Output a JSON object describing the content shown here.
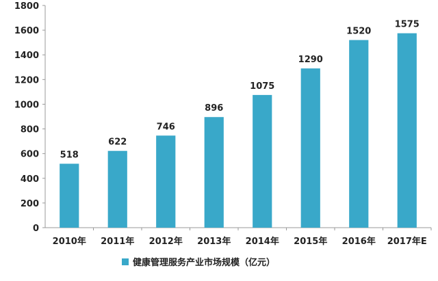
{
  "chart_data": {
    "type": "bar",
    "categories": [
      "2010年",
      "2011年",
      "2012年",
      "2013年",
      "2014年",
      "2015年",
      "2016年",
      "2017年E"
    ],
    "series": [
      {
        "name": "健康管理服务产业市场规模（亿元）",
        "values": [
          518,
          622,
          746,
          896,
          1075,
          1290,
          1520,
          1575
        ]
      }
    ],
    "data_labels": [
      "518",
      "622",
      "746",
      "896",
      "1075",
      "1290",
      "1520",
      "1575"
    ],
    "y_ticks": [
      "0",
      "200",
      "400",
      "600",
      "800",
      "1000",
      "1200",
      "1400",
      "1600",
      "1800"
    ],
    "ylim": [
      0,
      1800
    ],
    "grid": false,
    "legend_position": "bottom-left",
    "colors": {
      "bar": "#39a8c9",
      "axis": "#999999",
      "text": "#222222"
    }
  }
}
